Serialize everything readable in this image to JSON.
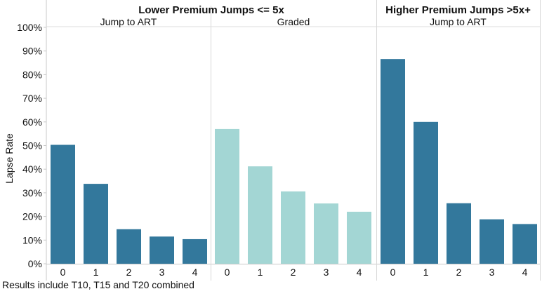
{
  "chart_data": {
    "type": "bar",
    "ylabel": "Lapse Rate",
    "ylim": [
      0,
      100
    ],
    "yticks": [
      "0%",
      "10%",
      "20%",
      "30%",
      "40%",
      "50%",
      "60%",
      "70%",
      "80%",
      "90%",
      "100%"
    ],
    "y_tick_values": [
      0,
      10,
      20,
      30,
      40,
      50,
      60,
      70,
      80,
      90,
      100
    ],
    "grid": false,
    "group_headers": [
      {
        "label": "Lower Premium Jumps <= 5x"
      },
      {
        "label": "Higher Premium Jumps >5x+"
      }
    ],
    "panels": [
      {
        "subtitle": "Jump to ART",
        "color": "#33789c",
        "categories": [
          "0",
          "1",
          "2",
          "3",
          "4"
        ],
        "values": [
          50.3,
          33.8,
          14.6,
          11.5,
          10.4
        ]
      },
      {
        "subtitle": "Graded",
        "color": "#a3d6d4",
        "categories": [
          "0",
          "1",
          "2",
          "3",
          "4"
        ],
        "values": [
          57.0,
          41.2,
          30.6,
          25.5,
          22.0
        ]
      },
      {
        "subtitle": "Jump to ART",
        "color": "#33789c",
        "categories": [
          "0",
          "1",
          "2",
          "3",
          "4"
        ],
        "values": [
          86.6,
          60.0,
          25.6,
          18.8,
          16.8
        ]
      }
    ]
  },
  "footnote": "Results include T10, T15 and T20 combined"
}
